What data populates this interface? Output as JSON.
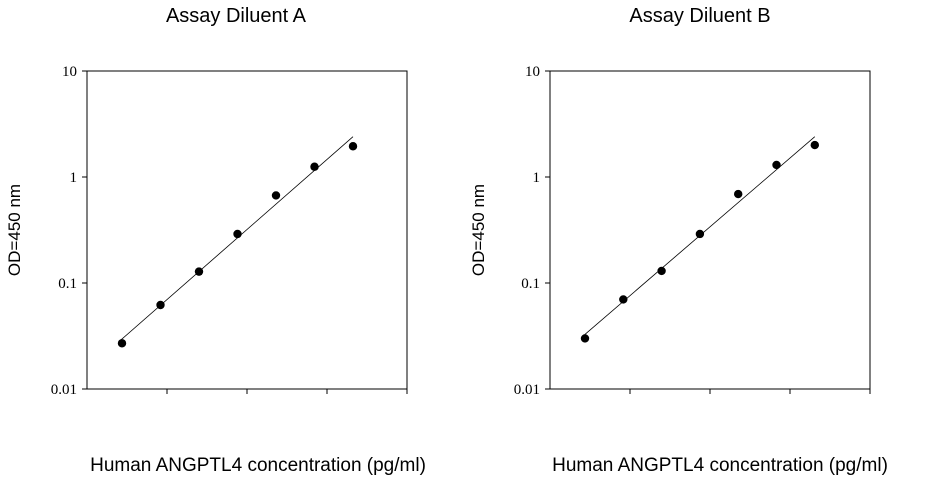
{
  "chart_data": [
    {
      "type": "scatter",
      "title": "Assay Diluent A",
      "xlabel": "Human ANGPTL4 concentration (pg/ml)",
      "ylabel": "OD=450 nm",
      "yscale": "log",
      "ylim": [
        0.01,
        10
      ],
      "yticks": [
        {
          "value": 10,
          "label": "10"
        },
        {
          "value": 1,
          "label": "1"
        },
        {
          "value": 0.1,
          "label": "0.1"
        },
        {
          "value": 0.01,
          "label": "0.01"
        }
      ],
      "x": [
        1,
        2,
        3,
        4,
        5,
        6,
        7
      ],
      "y": [
        0.027,
        0.062,
        0.128,
        0.29,
        0.67,
        1.25,
        1.95
      ],
      "trendline": {
        "x": [
          1,
          7
        ],
        "y": [
          0.028,
          2.4
        ]
      },
      "grid": false,
      "legend": "none"
    },
    {
      "type": "scatter",
      "title": "Assay Diluent B",
      "xlabel": "Human ANGPTL4 concentration (pg/ml)",
      "ylabel": "OD=450 nm",
      "yscale": "log",
      "ylim": [
        0.01,
        10
      ],
      "yticks": [
        {
          "value": 10,
          "label": "10"
        },
        {
          "value": 1,
          "label": "1"
        },
        {
          "value": 0.1,
          "label": "0.1"
        },
        {
          "value": 0.01,
          "label": "0.01"
        }
      ],
      "x": [
        1,
        2,
        3,
        4,
        5,
        6,
        7
      ],
      "y": [
        0.03,
        0.07,
        0.13,
        0.29,
        0.69,
        1.3,
        2.0
      ],
      "trendline": {
        "x": [
          1,
          7
        ],
        "y": [
          0.031,
          2.4
        ]
      },
      "grid": false,
      "legend": "none"
    }
  ]
}
